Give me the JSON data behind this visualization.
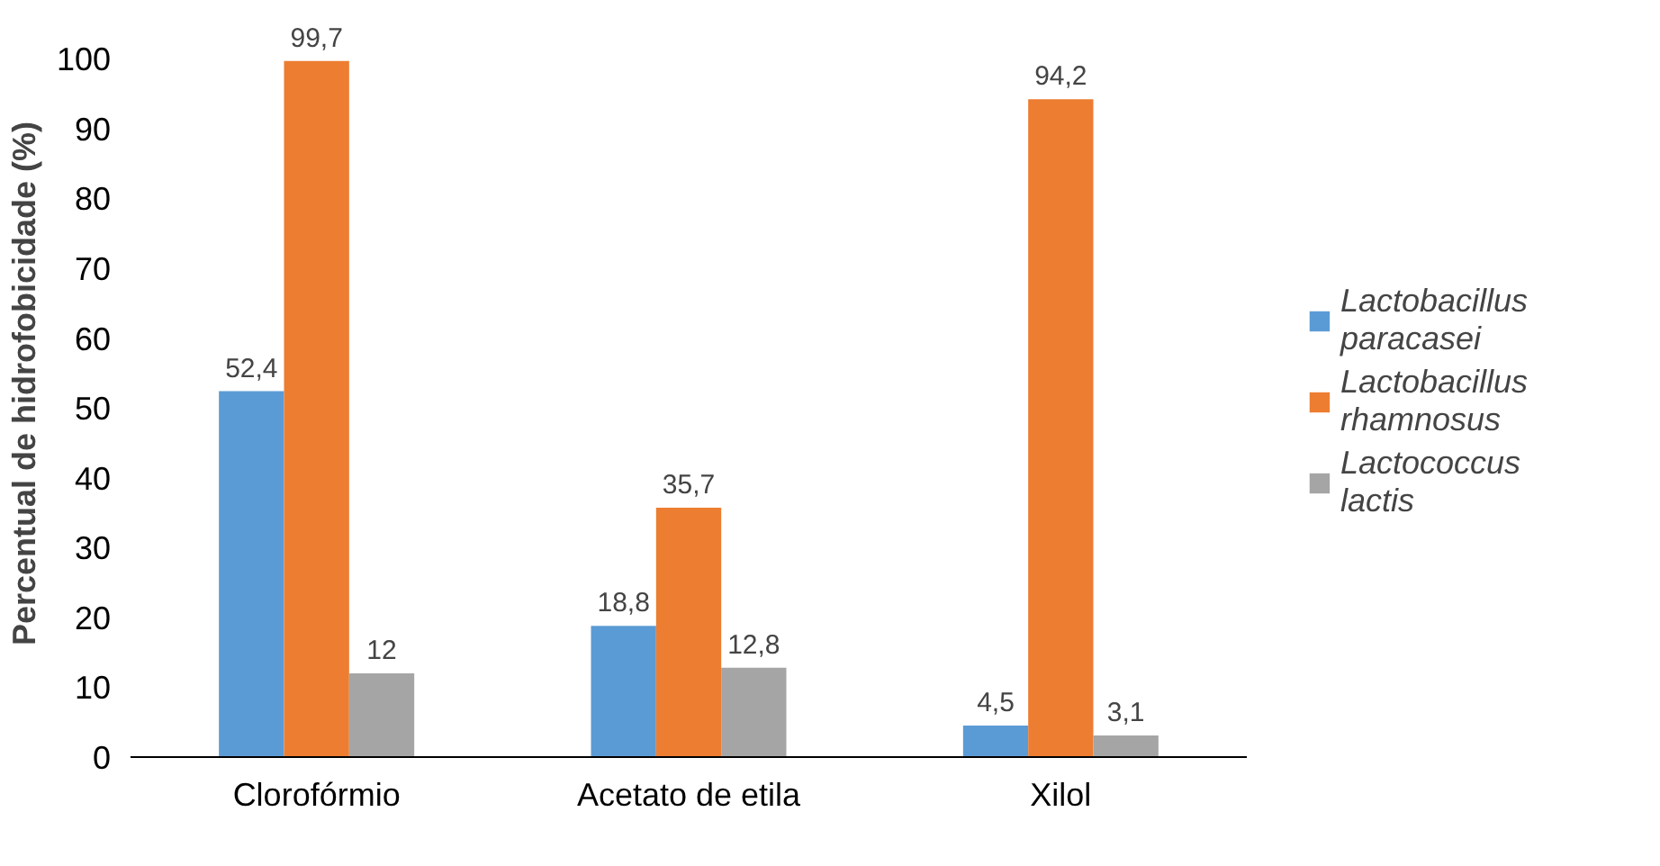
{
  "chart_data": {
    "type": "bar",
    "ylabel": "Percentual de hidrofobicidade (%)",
    "categories": [
      "Clorofórmio",
      "Acetato de etila",
      "Xilol"
    ],
    "ylim": [
      0,
      100
    ],
    "yticks": [
      0,
      10,
      20,
      30,
      40,
      50,
      60,
      70,
      80,
      90,
      100
    ],
    "grid": false,
    "legend": "right",
    "series": [
      {
        "name": "Lactobacillus paracasei",
        "color": "#5b9bd5",
        "values": [
          52.4,
          18.8,
          4.5
        ],
        "value_labels": [
          "52,4",
          "18,8",
          "4,5"
        ]
      },
      {
        "name": "Lactobacillus rhamnosus",
        "color": "#ed7d31",
        "values": [
          99.7,
          35.7,
          94.2
        ],
        "value_labels": [
          "99,7",
          "35,7",
          "94,2"
        ]
      },
      {
        "name": "Lactococcus lactis",
        "color": "#a5a5a5",
        "values": [
          12,
          12.8,
          3.1
        ],
        "value_labels": [
          "12",
          "12,8",
          "3,1"
        ]
      }
    ]
  }
}
